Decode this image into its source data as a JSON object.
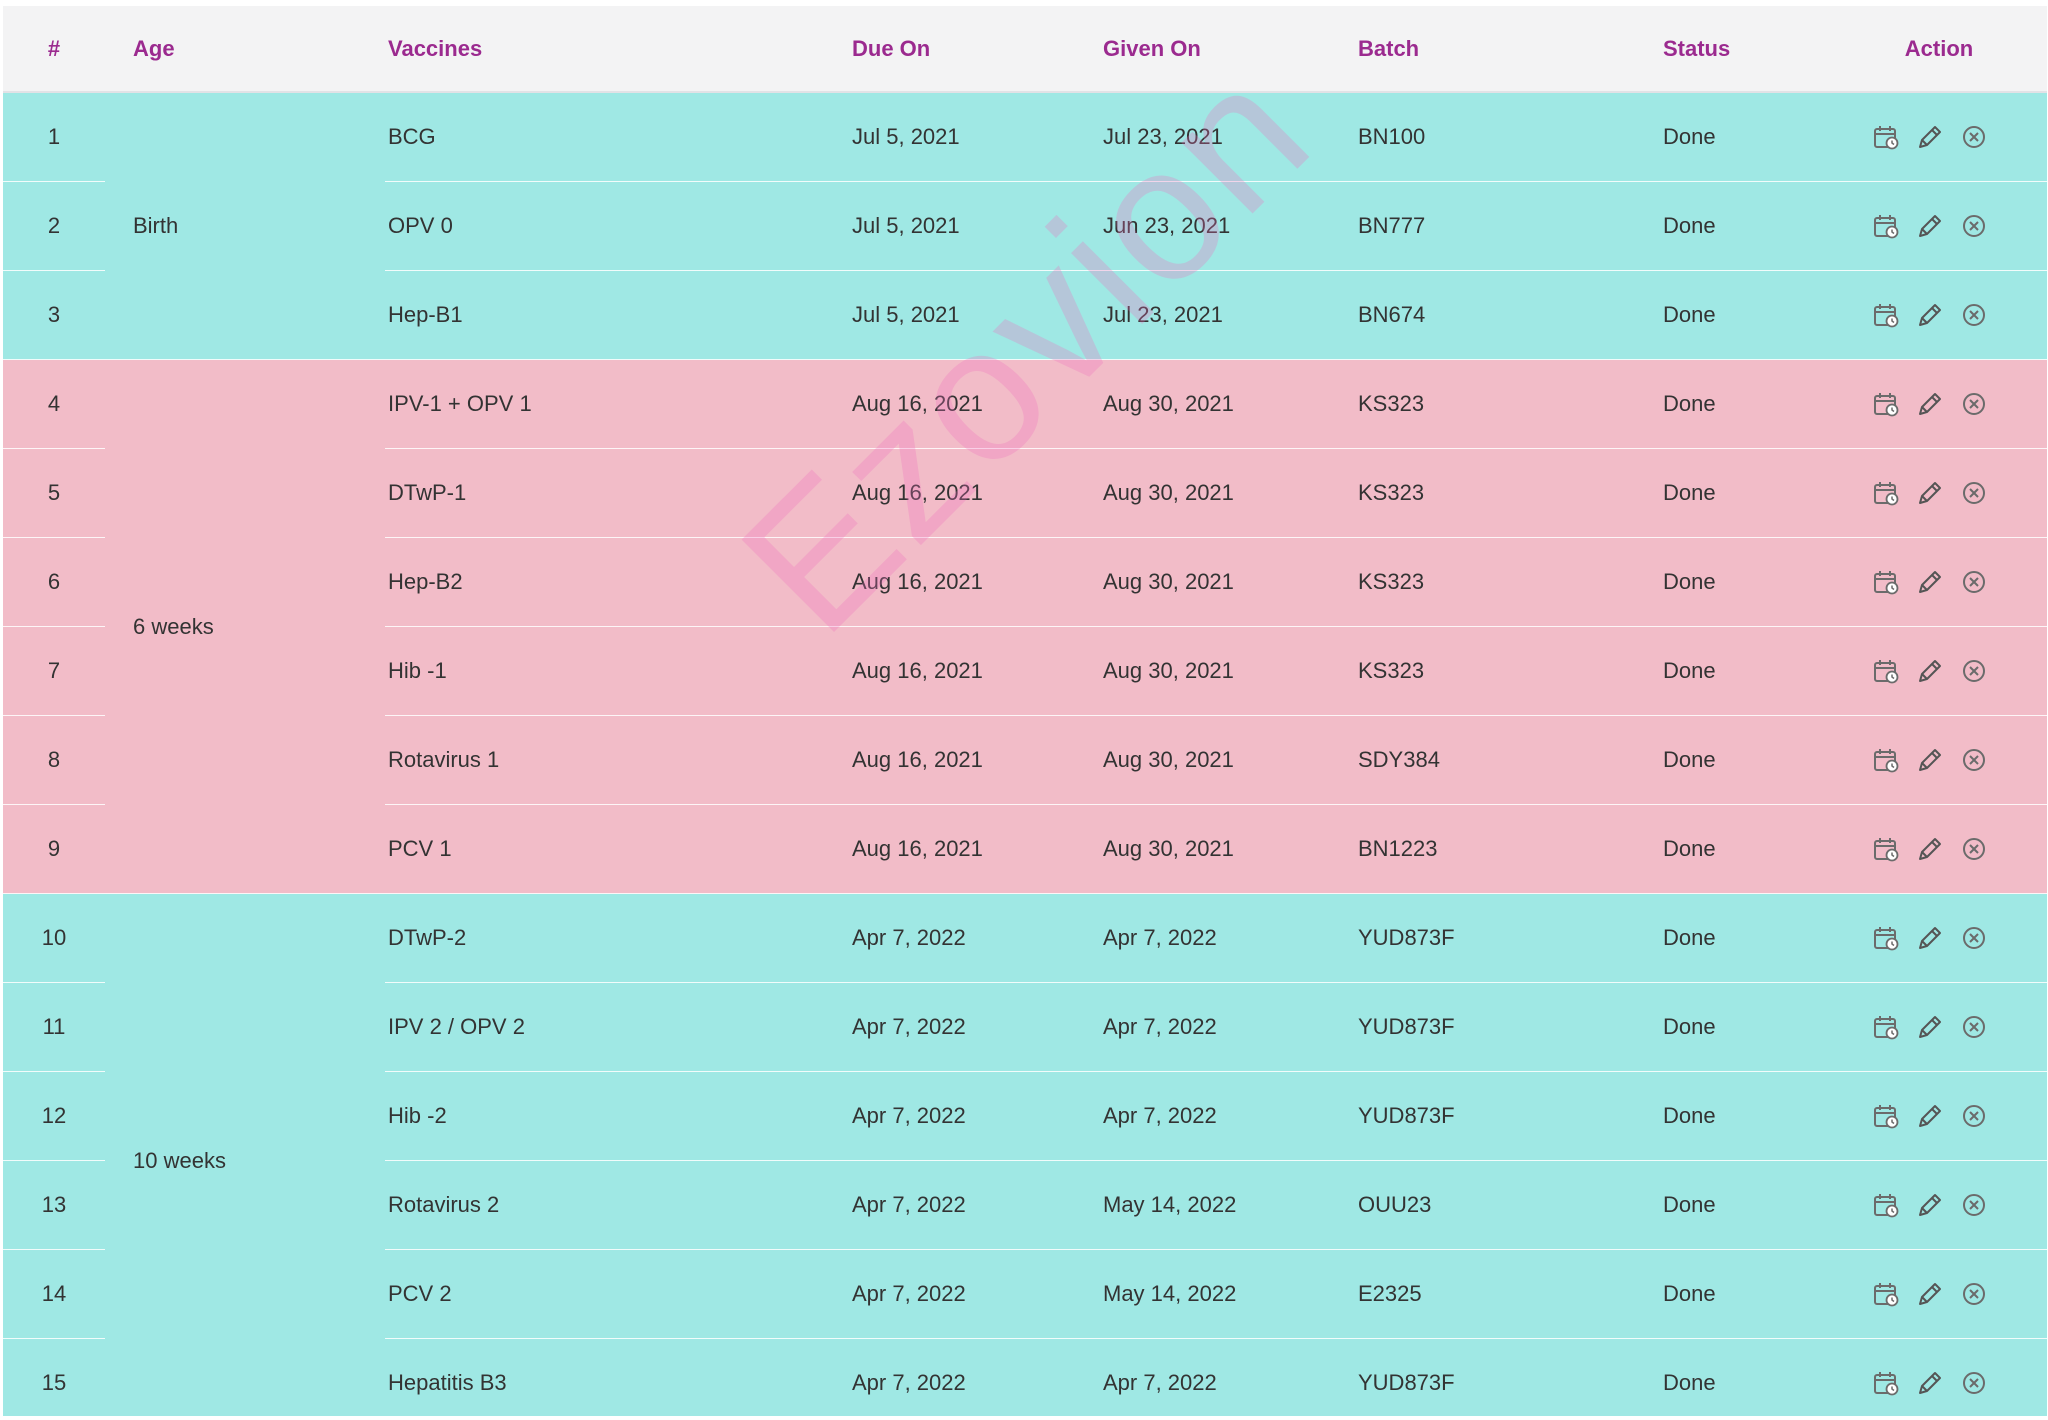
{
  "table": {
    "headers": {
      "num": "#",
      "age": "Age",
      "vaccines": "Vaccines",
      "due_on": "Due On",
      "given_on": "Given On",
      "batch": "Batch",
      "status": "Status",
      "action": "Action"
    },
    "groups": [
      {
        "age": "Birth",
        "color": "#9fe8e4",
        "rows": [
          {
            "num": "1",
            "vaccine": "BCG",
            "due": "Jul 5, 2021",
            "given": "Jul 23, 2021",
            "batch": "BN100",
            "status": "Done"
          },
          {
            "num": "2",
            "vaccine": "OPV 0",
            "due": "Jul 5, 2021",
            "given": "Jun 23, 2021",
            "batch": "BN777",
            "status": "Done"
          },
          {
            "num": "3",
            "vaccine": "Hep-B1",
            "due": "Jul 5, 2021",
            "given": "Jul 23, 2021",
            "batch": "BN674",
            "status": "Done"
          }
        ]
      },
      {
        "age": "6 weeks",
        "color": "#f2bcc8",
        "rows": [
          {
            "num": "4",
            "vaccine": "IPV-1 + OPV 1",
            "due": "Aug 16, 2021",
            "given": "Aug 30, 2021",
            "batch": "KS323",
            "status": "Done"
          },
          {
            "num": "5",
            "vaccine": "DTwP-1",
            "due": "Aug 16, 2021",
            "given": "Aug 30, 2021",
            "batch": "KS323",
            "status": "Done"
          },
          {
            "num": "6",
            "vaccine": "Hep-B2",
            "due": "Aug 16, 2021",
            "given": "Aug 30, 2021",
            "batch": "KS323",
            "status": "Done"
          },
          {
            "num": "7",
            "vaccine": "Hib -1",
            "due": "Aug 16, 2021",
            "given": "Aug 30, 2021",
            "batch": "KS323",
            "status": "Done"
          },
          {
            "num": "8",
            "vaccine": "Rotavirus 1",
            "due": "Aug 16, 2021",
            "given": "Aug 30, 2021",
            "batch": "SDY384",
            "status": "Done"
          },
          {
            "num": "9",
            "vaccine": "PCV 1",
            "due": "Aug 16, 2021",
            "given": "Aug 30, 2021",
            "batch": "BN1223",
            "status": "Done"
          }
        ]
      },
      {
        "age": "10 weeks",
        "color": "#9fe8e4",
        "rows": [
          {
            "num": "10",
            "vaccine": "DTwP-2",
            "due": "Apr 7, 2022",
            "given": "Apr 7, 2022",
            "batch": "YUD873F",
            "status": "Done"
          },
          {
            "num": "11",
            "vaccine": "IPV 2 / OPV 2",
            "due": "Apr 7, 2022",
            "given": "Apr 7, 2022",
            "batch": "YUD873F",
            "status": "Done"
          },
          {
            "num": "12",
            "vaccine": "Hib -2",
            "due": "Apr 7, 2022",
            "given": "Apr 7, 2022",
            "batch": "YUD873F",
            "status": "Done"
          },
          {
            "num": "13",
            "vaccine": "Rotavirus 2",
            "due": "Apr 7, 2022",
            "given": "May 14, 2022",
            "batch": "OUU23",
            "status": "Done"
          },
          {
            "num": "14",
            "vaccine": "PCV 2",
            "due": "Apr 7, 2022",
            "given": "May 14, 2022",
            "batch": "E2325",
            "status": "Done"
          },
          {
            "num": "15",
            "vaccine": "Hepatitis B3",
            "due": "Apr 7, 2022",
            "given": "Apr 7, 2022",
            "batch": "YUD873F",
            "status": "Done"
          }
        ]
      }
    ],
    "action_icons": [
      "calendar-schedule-icon",
      "pencil-edit-icon",
      "circle-x-icon"
    ]
  },
  "watermark": "Ezovion",
  "colors": {
    "header_text": "#9b2a8f",
    "header_bg": "#f3f3f4",
    "teal_row": "#9fe8e4",
    "pink_row": "#f2bcc8",
    "icon": "#555555"
  }
}
